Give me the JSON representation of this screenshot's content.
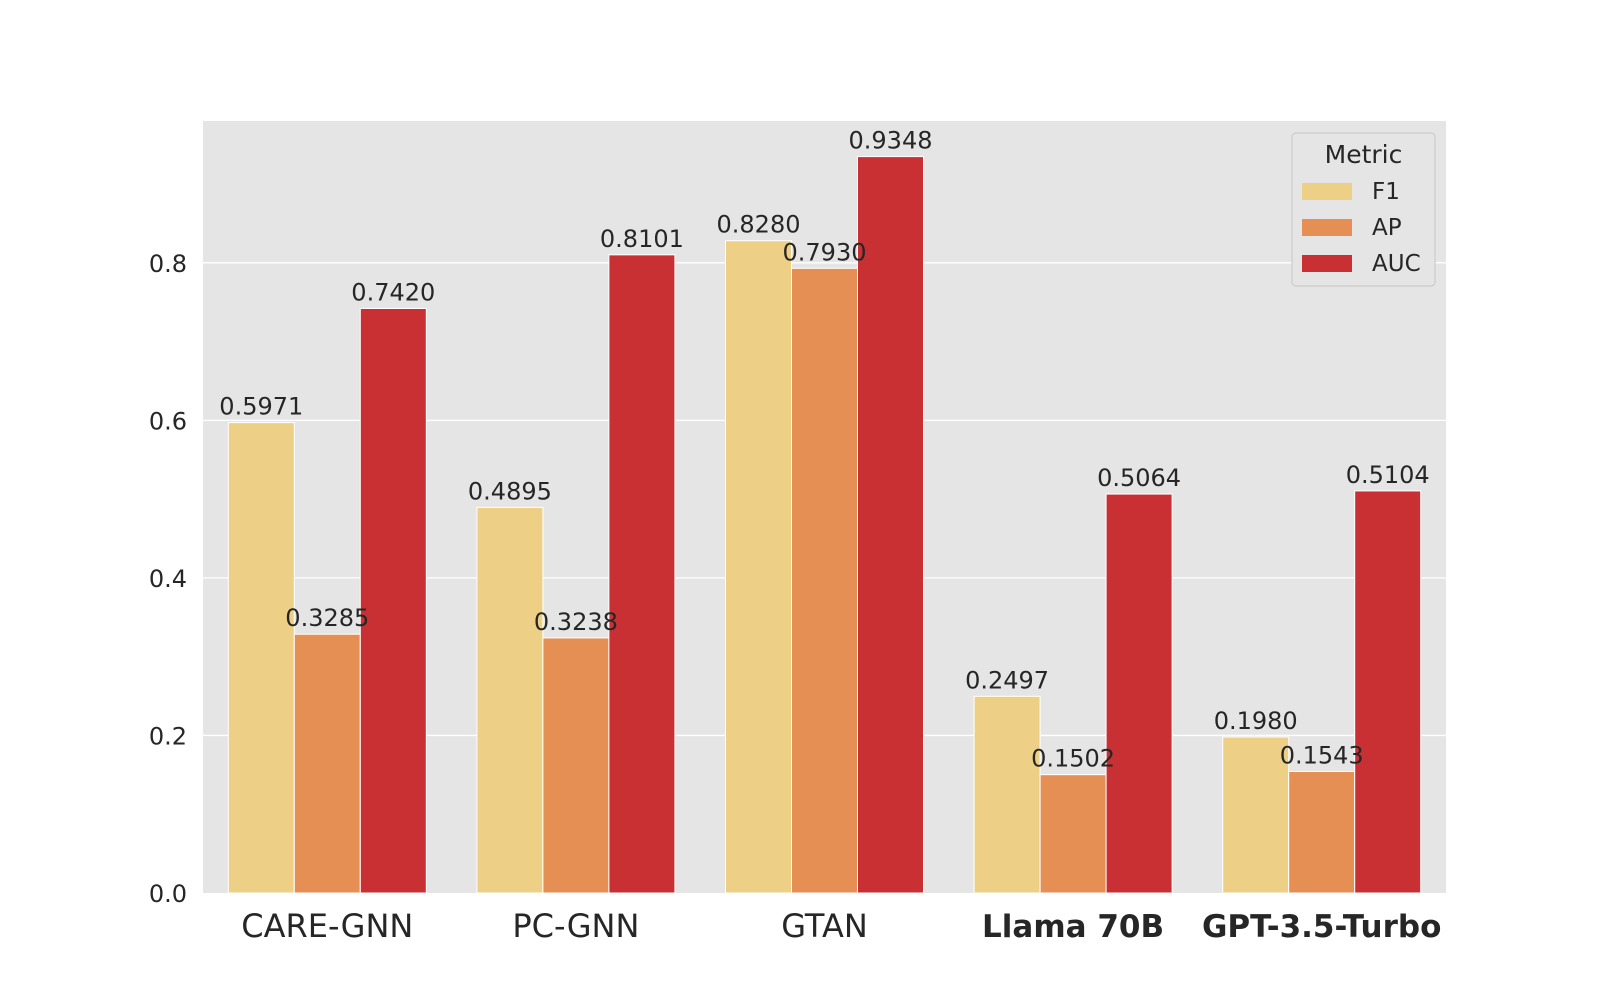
{
  "chart_data": {
    "type": "bar",
    "title": "",
    "xlabel": "",
    "ylabel": "",
    "categories": [
      "CARE-GNN",
      "PC-GNN",
      "GTAN",
      "Llama 70B",
      "GPT-3.5-Turbo"
    ],
    "bold_categories": [
      "Llama 70B",
      "GPT-3.5-Turbo"
    ],
    "ylim": [
      0,
      0.98
    ],
    "yticks": [
      0.0,
      0.2,
      0.4,
      0.6,
      0.8
    ],
    "ytick_labels": [
      "0.0",
      "0.2",
      "0.4",
      "0.6",
      "0.8"
    ],
    "grid": true,
    "legend": {
      "title": "Metric",
      "position": "top-right"
    },
    "series": [
      {
        "name": "F1",
        "color": "#EDD086",
        "values": [
          0.5971,
          0.4895,
          0.828,
          0.2497,
          0.198
        ],
        "labels": [
          "0.5971",
          "0.4895",
          "0.8280",
          "0.2497",
          "0.1980"
        ]
      },
      {
        "name": "AP",
        "color": "#E58F54",
        "values": [
          0.3285,
          0.3238,
          0.793,
          0.1502,
          0.1543
        ],
        "labels": [
          "0.3285",
          "0.3238",
          "0.7930",
          "0.1502",
          "0.1543"
        ]
      },
      {
        "name": "AUC",
        "color": "#C93034",
        "values": [
          0.742,
          0.8101,
          0.9348,
          0.5064,
          0.5104
        ],
        "labels": [
          "0.7420",
          "0.8101",
          "0.9348",
          "0.5064",
          "0.5104"
        ]
      }
    ],
    "colors": {
      "plot_background": "#E5E5E5",
      "grid": "#FFFFFF",
      "text": "#262626"
    }
  }
}
